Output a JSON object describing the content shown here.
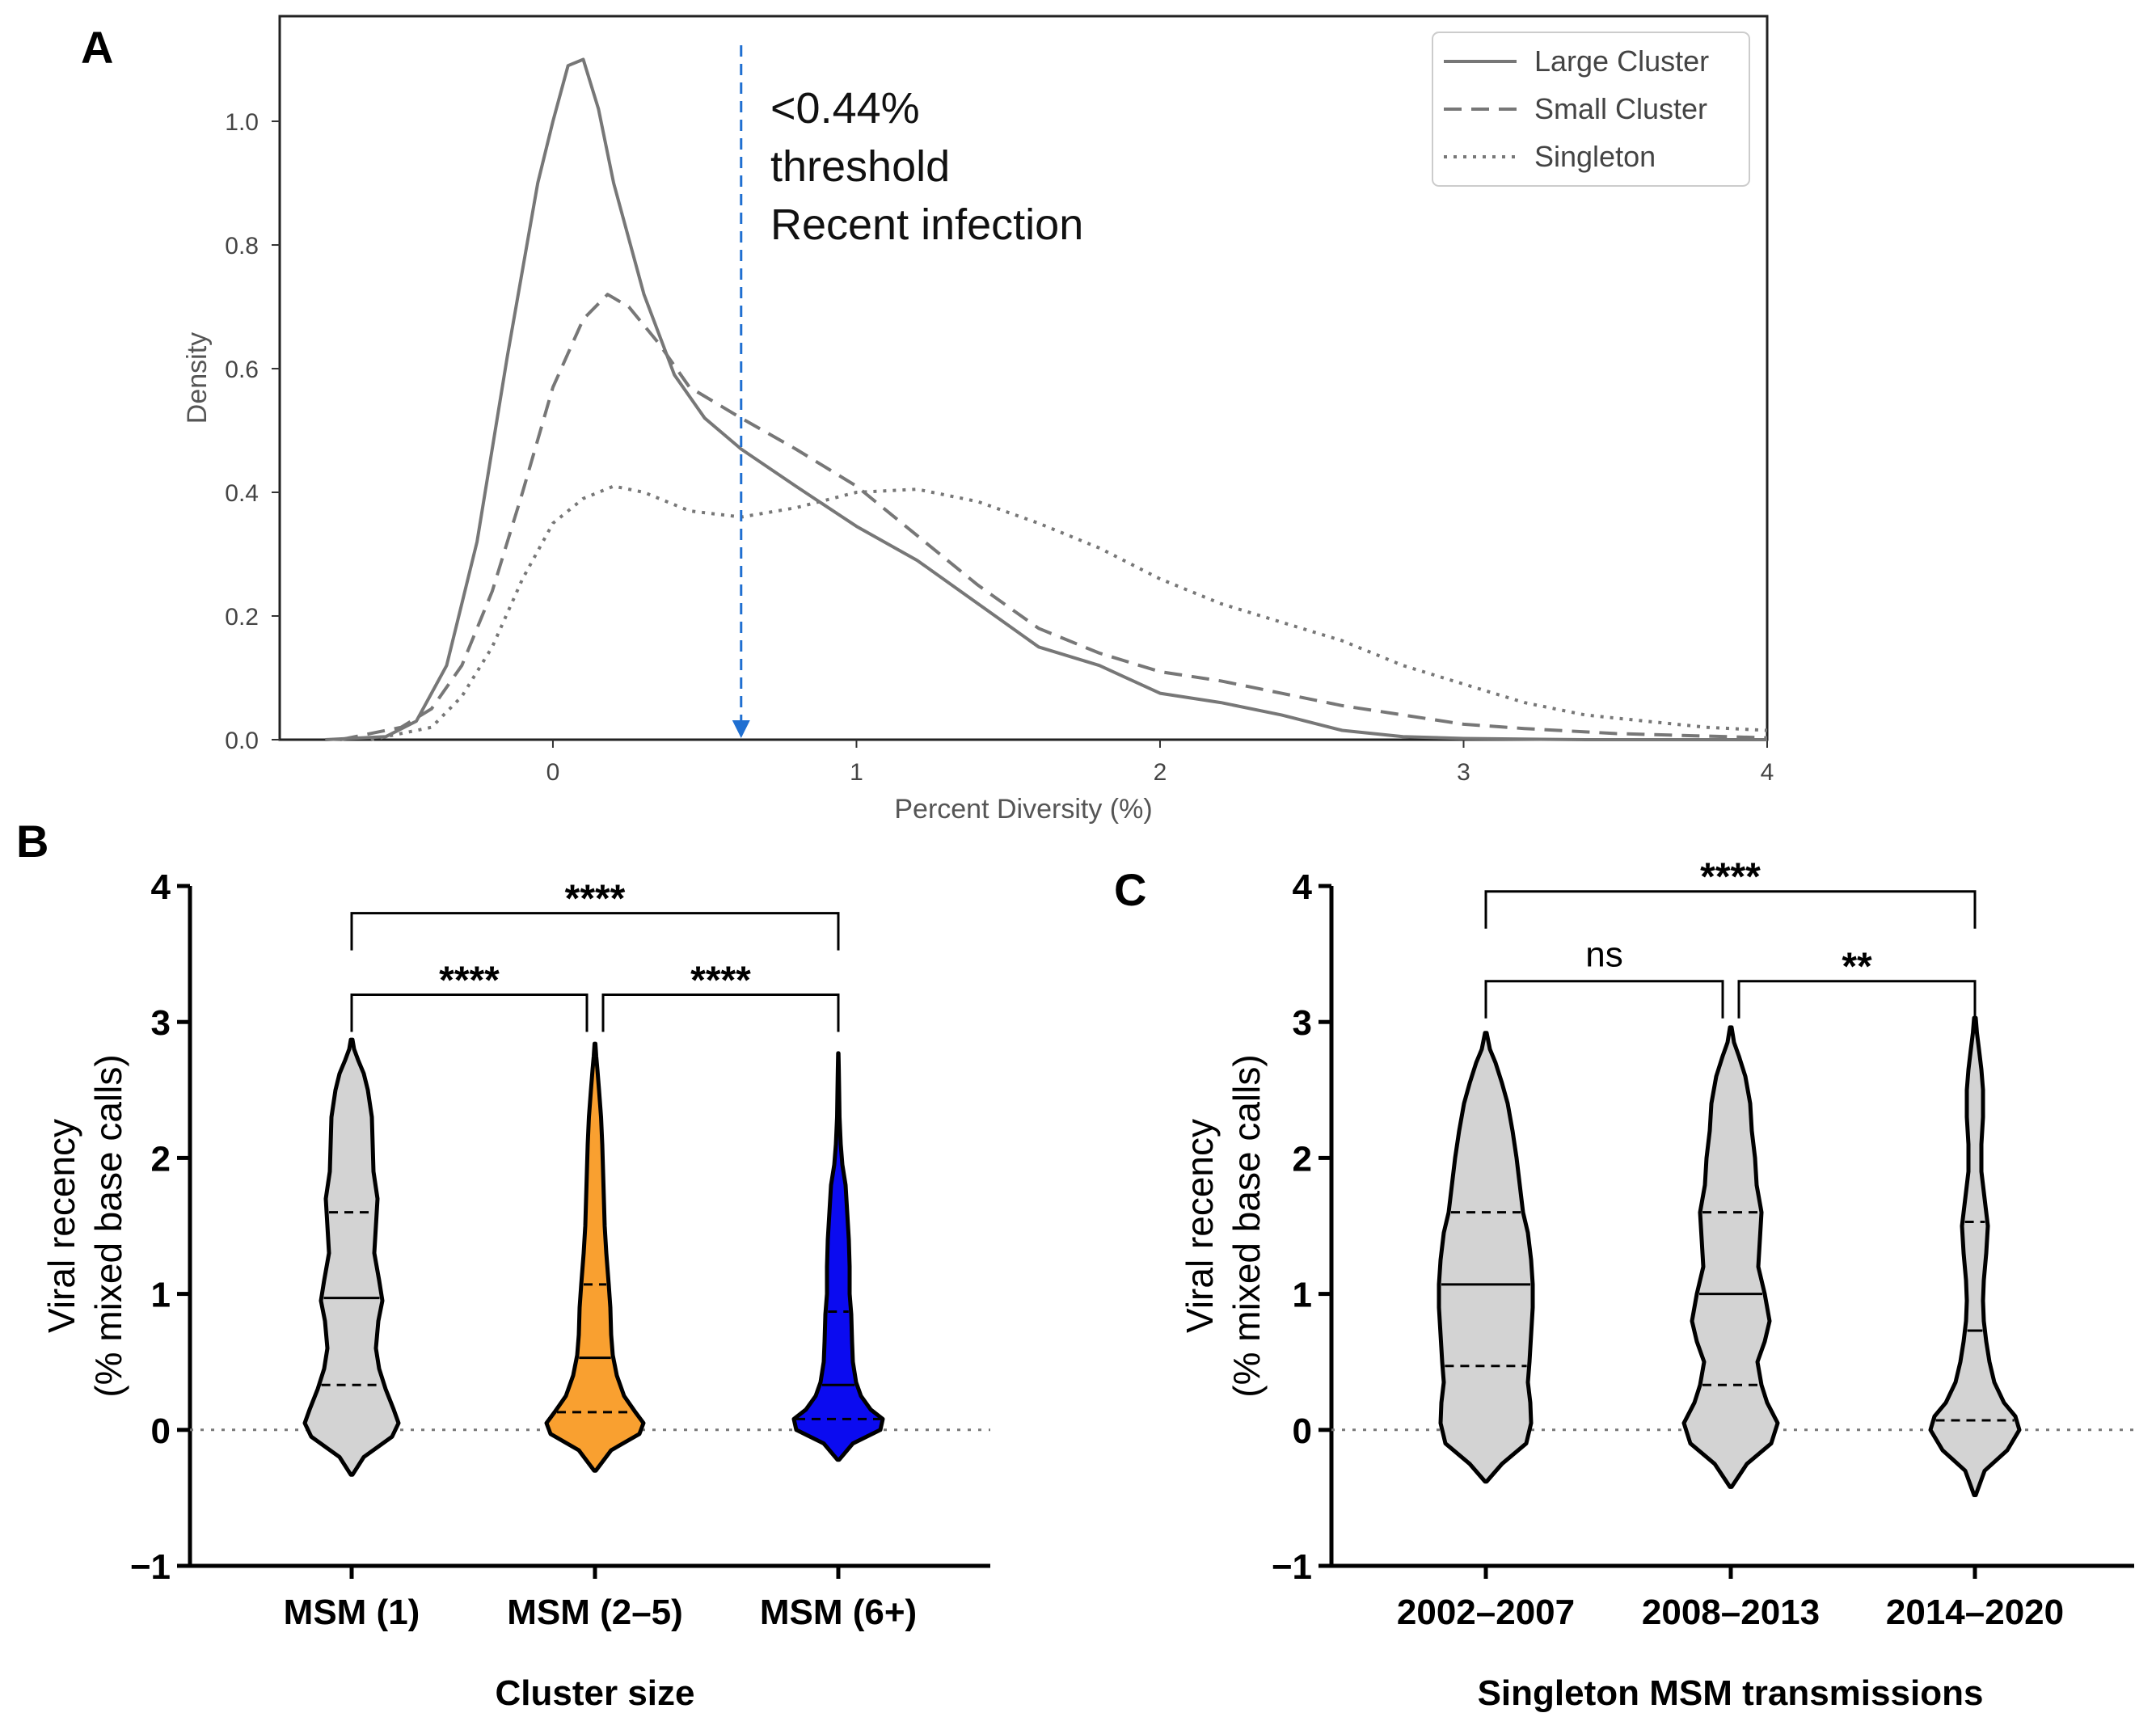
{
  "chart_data": [
    {
      "panel": "A",
      "type": "line",
      "xlabel": "Percent Diversity (%)",
      "ylabel": "Density",
      "xlim": [
        -0.9,
        4.0
      ],
      "ylim": [
        0.0,
        1.17
      ],
      "xticks": [
        "0",
        "1",
        "2",
        "3",
        "4"
      ],
      "yticks": [
        "0.0",
        "0.2",
        "0.4",
        "0.6",
        "0.8",
        "1.0"
      ],
      "legend_position": "top-right",
      "threshold": {
        "x": 0.62,
        "lines": [
          "<0.44%",
          "threshold",
          "Recent infection"
        ],
        "color": "#1f6fd1"
      },
      "series": [
        {
          "name": "Large Cluster",
          "style": "solid",
          "x": [
            -0.75,
            -0.55,
            -0.45,
            -0.35,
            -0.25,
            -0.15,
            -0.05,
            0.0,
            0.05,
            0.1,
            0.15,
            0.2,
            0.3,
            0.4,
            0.5,
            0.62,
            0.8,
            1.0,
            1.2,
            1.4,
            1.6,
            1.8,
            2.0,
            2.2,
            2.4,
            2.6,
            2.8,
            3.0,
            3.4,
            4.0
          ],
          "y": [
            0.0,
            0.005,
            0.03,
            0.12,
            0.32,
            0.62,
            0.9,
            1.0,
            1.09,
            1.1,
            1.02,
            0.9,
            0.72,
            0.59,
            0.52,
            0.47,
            0.41,
            0.345,
            0.29,
            0.22,
            0.15,
            0.12,
            0.075,
            0.06,
            0.04,
            0.015,
            0.005,
            0.002,
            0.0,
            0.0
          ]
        },
        {
          "name": "Small Cluster",
          "style": "dashed",
          "x": [
            -0.7,
            -0.5,
            -0.4,
            -0.3,
            -0.2,
            -0.1,
            0.0,
            0.1,
            0.18,
            0.25,
            0.35,
            0.45,
            0.62,
            0.8,
            1.0,
            1.2,
            1.4,
            1.6,
            1.8,
            2.0,
            2.2,
            2.4,
            2.6,
            2.8,
            3.0,
            3.2,
            3.5,
            4.0
          ],
          "y": [
            0.0,
            0.02,
            0.05,
            0.12,
            0.24,
            0.4,
            0.57,
            0.68,
            0.72,
            0.7,
            0.64,
            0.57,
            0.52,
            0.47,
            0.41,
            0.33,
            0.25,
            0.18,
            0.14,
            0.11,
            0.095,
            0.075,
            0.055,
            0.04,
            0.025,
            0.018,
            0.01,
            0.003
          ]
        },
        {
          "name": "Singleton",
          "style": "dotted",
          "x": [
            -0.6,
            -0.4,
            -0.3,
            -0.2,
            -0.1,
            0.0,
            0.1,
            0.2,
            0.3,
            0.45,
            0.62,
            0.8,
            1.0,
            1.2,
            1.4,
            1.6,
            1.8,
            2.0,
            2.2,
            2.4,
            2.6,
            2.8,
            3.0,
            3.2,
            3.4,
            3.6,
            3.8,
            4.0
          ],
          "y": [
            0.0,
            0.02,
            0.07,
            0.15,
            0.26,
            0.35,
            0.39,
            0.41,
            0.4,
            0.37,
            0.36,
            0.375,
            0.4,
            0.405,
            0.385,
            0.35,
            0.31,
            0.26,
            0.22,
            0.19,
            0.16,
            0.12,
            0.09,
            0.06,
            0.04,
            0.03,
            0.02,
            0.015
          ]
        }
      ]
    },
    {
      "panel": "B",
      "type": "violin",
      "xlabel": "Cluster size",
      "ylabel_lines": [
        "Viral recency",
        "(% mixed base calls)"
      ],
      "ylim": [
        -1,
        4
      ],
      "yticks": [
        "−1",
        "0",
        "1",
        "2",
        "3",
        "4"
      ],
      "zero_line": "dotted",
      "groups": [
        {
          "name": "MSM (1)",
          "color": "#d3d3d3",
          "min": -0.33,
          "max": 2.87,
          "q1": 0.33,
          "median": 0.97,
          "q3": 1.6,
          "profile_y": [
            -0.33,
            -0.2,
            -0.05,
            0.05,
            0.15,
            0.3,
            0.45,
            0.6,
            0.8,
            0.95,
            1.1,
            1.3,
            1.5,
            1.7,
            1.9,
            2.1,
            2.3,
            2.5,
            2.62,
            2.72,
            2.8,
            2.87
          ],
          "profile_w": [
            0.01,
            0.15,
            0.5,
            0.58,
            0.52,
            0.42,
            0.34,
            0.3,
            0.33,
            0.38,
            0.34,
            0.28,
            0.3,
            0.32,
            0.27,
            0.26,
            0.25,
            0.2,
            0.15,
            0.08,
            0.03,
            0.01
          ]
        },
        {
          "name": "MSM (2–5)",
          "color": "#f9a030",
          "min": -0.3,
          "max": 2.84,
          "q1": 0.13,
          "median": 0.53,
          "q3": 1.07,
          "profile_y": [
            -0.3,
            -0.15,
            -0.03,
            0.05,
            0.13,
            0.25,
            0.4,
            0.55,
            0.7,
            0.9,
            1.07,
            1.3,
            1.5,
            1.7,
            1.9,
            2.1,
            2.3,
            2.5,
            2.65,
            2.75,
            2.84
          ],
          "profile_w": [
            0.01,
            0.2,
            0.55,
            0.6,
            0.5,
            0.36,
            0.27,
            0.22,
            0.2,
            0.19,
            0.17,
            0.14,
            0.12,
            0.11,
            0.1,
            0.09,
            0.075,
            0.05,
            0.03,
            0.015,
            0.005
          ]
        },
        {
          "name": "MSM (6+)",
          "color": "#0b0bf0",
          "min": -0.22,
          "max": 2.77,
          "q1": 0.08,
          "median": 0.33,
          "q3": 0.87,
          "profile_y": [
            -0.22,
            -0.1,
            0.0,
            0.08,
            0.15,
            0.25,
            0.35,
            0.5,
            0.65,
            0.85,
            1.0,
            1.2,
            1.4,
            1.6,
            1.8,
            1.95,
            2.1,
            2.3,
            2.5,
            2.65,
            2.77
          ],
          "profile_w": [
            0.01,
            0.18,
            0.52,
            0.55,
            0.4,
            0.28,
            0.22,
            0.18,
            0.17,
            0.16,
            0.14,
            0.14,
            0.13,
            0.11,
            0.09,
            0.05,
            0.03,
            0.015,
            0.01,
            0.006,
            0.002
          ]
        }
      ],
      "comparisons": [
        {
          "from": 0,
          "to": 1,
          "label": "****",
          "level": 3.2
        },
        {
          "from": 1,
          "to": 2,
          "label": "****",
          "level": 3.2
        },
        {
          "from": 0,
          "to": 2,
          "label": "****",
          "level": 3.8
        }
      ]
    },
    {
      "panel": "C",
      "type": "violin",
      "xlabel": "Singleton MSM transmissions",
      "ylabel_lines": [
        "Viral recency",
        "(% mixed base calls)"
      ],
      "ylim": [
        -1,
        4
      ],
      "yticks": [
        "−1",
        "0",
        "1",
        "2",
        "3",
        "4"
      ],
      "zero_line": "dotted",
      "groups": [
        {
          "name": "2002–2007",
          "color": "#d3d3d3",
          "min": -0.38,
          "max": 2.92,
          "q1": 0.47,
          "median": 1.07,
          "q3": 1.6,
          "profile_y": [
            -0.38,
            -0.25,
            -0.1,
            0.05,
            0.2,
            0.35,
            0.5,
            0.7,
            0.9,
            1.07,
            1.25,
            1.45,
            1.6,
            1.8,
            2.0,
            2.2,
            2.4,
            2.55,
            2.7,
            2.8,
            2.92
          ],
          "profile_w": [
            0.01,
            0.2,
            0.5,
            0.56,
            0.55,
            0.52,
            0.54,
            0.56,
            0.58,
            0.58,
            0.56,
            0.52,
            0.46,
            0.42,
            0.38,
            0.33,
            0.27,
            0.2,
            0.12,
            0.05,
            0.01
          ]
        },
        {
          "name": "2008–2013",
          "color": "#d3d3d3",
          "min": -0.42,
          "max": 2.96,
          "q1": 0.33,
          "median": 1.0,
          "q3": 1.6,
          "profile_y": [
            -0.42,
            -0.25,
            -0.1,
            0.05,
            0.2,
            0.33,
            0.5,
            0.65,
            0.8,
            1.0,
            1.2,
            1.4,
            1.6,
            1.8,
            2.0,
            2.2,
            2.4,
            2.6,
            2.75,
            2.85,
            2.96
          ],
          "profile_w": [
            0.01,
            0.2,
            0.5,
            0.58,
            0.45,
            0.38,
            0.33,
            0.42,
            0.48,
            0.42,
            0.34,
            0.36,
            0.38,
            0.32,
            0.3,
            0.26,
            0.24,
            0.18,
            0.1,
            0.04,
            0.01
          ]
        },
        {
          "name": "2014–2020",
          "color": "#d3d3d3",
          "min": -0.48,
          "max": 3.03,
          "q1": 0.07,
          "median": 0.73,
          "q3": 1.53,
          "profile_y": [
            -0.48,
            -0.3,
            -0.15,
            0.0,
            0.1,
            0.2,
            0.35,
            0.5,
            0.65,
            0.8,
            0.95,
            1.1,
            1.3,
            1.5,
            1.7,
            1.9,
            2.1,
            2.3,
            2.5,
            2.65,
            2.8,
            2.92,
            3.03
          ],
          "profile_w": [
            0.01,
            0.12,
            0.4,
            0.55,
            0.5,
            0.36,
            0.24,
            0.18,
            0.14,
            0.11,
            0.1,
            0.11,
            0.14,
            0.16,
            0.12,
            0.08,
            0.08,
            0.1,
            0.1,
            0.08,
            0.05,
            0.025,
            0.01
          ]
        }
      ],
      "comparisons": [
        {
          "from": 0,
          "to": 1,
          "label": "ns",
          "level": 3.3
        },
        {
          "from": 1,
          "to": 2,
          "label": "**",
          "level": 3.3
        },
        {
          "from": 0,
          "to": 2,
          "label": "****",
          "level": 3.96
        }
      ]
    }
  ],
  "panel_labels": {
    "a": "A",
    "b": "B",
    "c": "C"
  }
}
